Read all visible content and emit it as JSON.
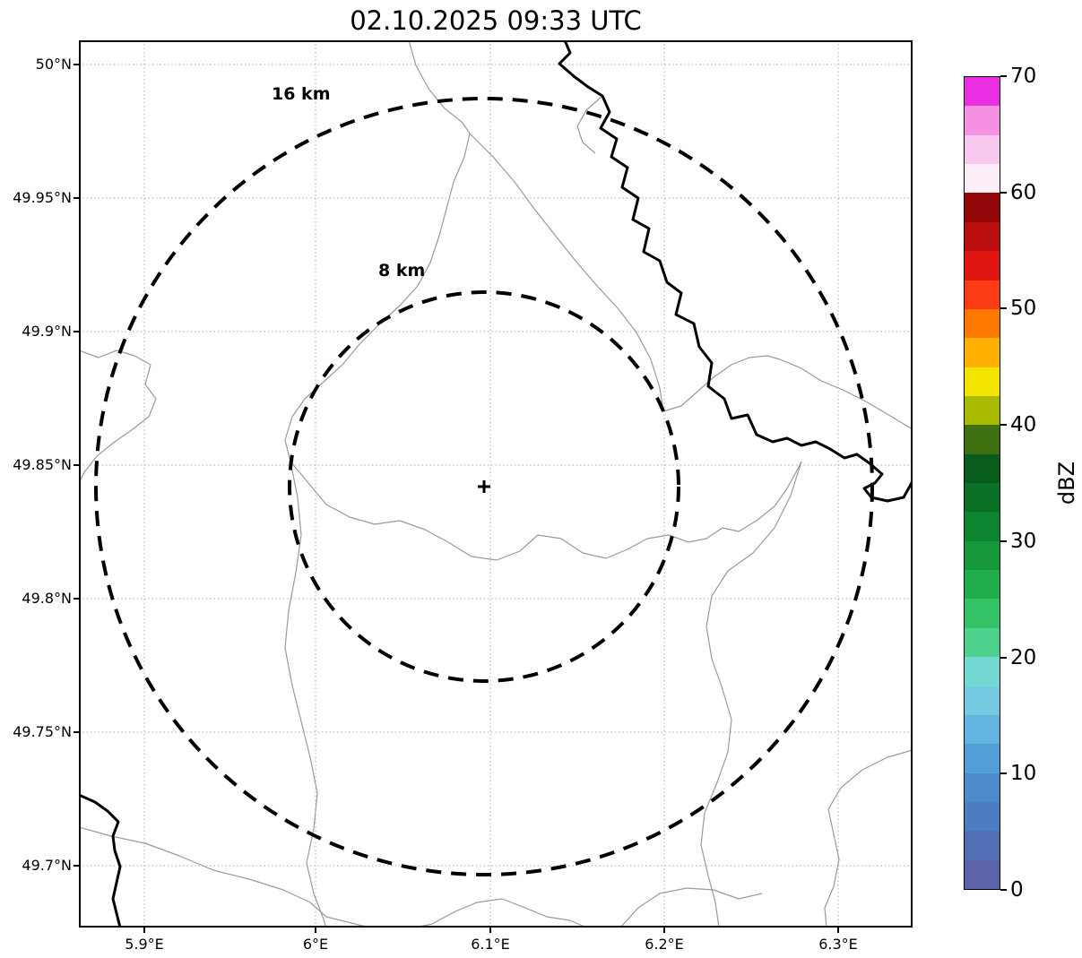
{
  "title": "02.10.2025 09:33 UTC",
  "axes": {
    "x_ticks": [
      "5.9°E",
      "6°E",
      "6.1°E",
      "6.2°E",
      "6.3°E"
    ],
    "y_ticks": [
      "50°N",
      "49.95°N",
      "49.9°N",
      "49.85°N",
      "49.8°N",
      "49.75°N",
      "49.7°N"
    ]
  },
  "rings": {
    "outer_label": "16 km",
    "inner_label": "8 km"
  },
  "colorbar": {
    "label": "dBZ",
    "min": 0,
    "max": 70,
    "ticks": [
      0,
      10,
      20,
      30,
      40,
      50,
      60,
      70
    ],
    "colors_bottom_to_top": [
      "#5a63a9",
      "#526fb5",
      "#4c7cc1",
      "#4c8ccd",
      "#549ed7",
      "#63b4df",
      "#75cae2",
      "#74d9d2",
      "#4ed18d",
      "#33c366",
      "#1fae4b",
      "#14983a",
      "#0d842e",
      "#0a7024",
      "#075c1b",
      "#3f7010",
      "#a8bb00",
      "#f2e400",
      "#ffb000",
      "#ff7800",
      "#fb3c14",
      "#e01710",
      "#bb0e0e",
      "#920808",
      "#fceef9",
      "#f9c8ee",
      "#f590e3",
      "#ea2fe3"
    ]
  },
  "chart_data": {
    "type": "map",
    "subtype": "weather-radar-range-map",
    "title": "02.10.2025 09:33 UTC",
    "x_axis": {
      "label": "",
      "tick_labels": [
        "5.9°E",
        "6°E",
        "6.1°E",
        "6.2°E",
        "6.3°E"
      ],
      "range": [
        5.862,
        6.343
      ],
      "grid": true,
      "grid_style": "dotted"
    },
    "y_axis": {
      "label": "",
      "tick_labels": [
        "50°N",
        "49.95°N",
        "49.9°N",
        "49.85°N",
        "49.8°N",
        "49.75°N",
        "49.7°N"
      ],
      "range": [
        49.669,
        50.009
      ],
      "grid": true,
      "grid_style": "dotted"
    },
    "radar_center": {
      "lon": 6.096,
      "lat": 49.843,
      "marker": "+"
    },
    "range_rings": [
      {
        "radius_km": 8,
        "label": "8 km",
        "style": "dashed",
        "color": "#000000"
      },
      {
        "radius_km": 16,
        "label": "16 km",
        "style": "dashed",
        "color": "#000000"
      }
    ],
    "colorbar": {
      "label": "dBZ",
      "min": 0,
      "max": 70,
      "tick_values": [
        0,
        10,
        20,
        30,
        40,
        50,
        60,
        70
      ],
      "step": 2.5,
      "position": "right"
    },
    "reflectivity_echoes": [],
    "map_layers": [
      "administrative-boundaries-thin-gray",
      "river-thick-black"
    ]
  }
}
